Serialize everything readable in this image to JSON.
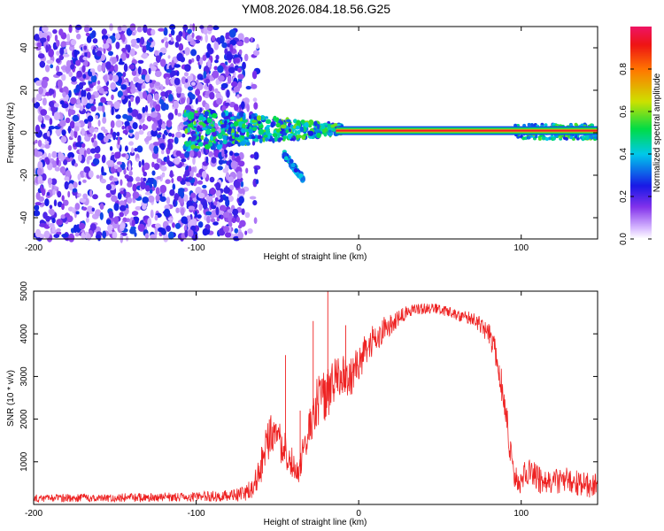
{
  "title": "YM08.2026.084.18.56.G25",
  "chart_data": [
    {
      "type": "heatmap",
      "xlabel": "Height of straight line (km)",
      "ylabel": "Frequency (Hz)",
      "xlim": [
        -200,
        147
      ],
      "ylim": [
        -50,
        50
      ],
      "xticks": [
        -200,
        -100,
        0,
        100
      ],
      "yticks": [
        -40,
        -20,
        0,
        20,
        40
      ],
      "colorbar": {
        "label": "Normalized spectral amplitude",
        "range": [
          0,
          1
        ],
        "ticks": [
          0.0,
          0.2,
          0.4,
          0.6,
          0.8
        ]
      },
      "features": {
        "carrier_line": {
          "x_from": -14,
          "x_to": 147,
          "frequency_hz": 1,
          "amplitude": 0.95
        },
        "noise_region": {
          "x_from": -200,
          "x_to": -72,
          "amplitude_range": [
            0.05,
            0.3
          ]
        },
        "mixed_region": {
          "x_from": -107,
          "x_to": -10,
          "frequency_band_hz": [
            -8,
            8
          ],
          "amplitude_range": [
            0.2,
            0.6
          ]
        },
        "branch": {
          "x_from": -46,
          "x_to": -34,
          "frequency_from_hz": -10,
          "frequency_to_hz": -22,
          "amplitude": 0.35
        },
        "right_band": {
          "x_from": 96,
          "x_to": 147,
          "frequency_band_hz": [
            -3,
            4
          ],
          "amplitude_range": [
            0.25,
            0.85
          ]
        }
      }
    },
    {
      "type": "line",
      "xlabel": "Height of straight line (km)",
      "ylabel": "SNR (10 * v/v)",
      "xlim": [
        -200,
        147
      ],
      "ylim": [
        0,
        5000
      ],
      "xticks": [
        -200,
        -100,
        0,
        100
      ],
      "yticks": [
        1000,
        2000,
        3000,
        4000,
        5000
      ],
      "series": [
        {
          "name": "SNR",
          "color": "#ee2222",
          "envelope": {
            "x": [
              -200,
              -150,
              -100,
              -75,
              -65,
              -60,
              -56,
              -52,
              -48,
              -44,
              -40,
              -37,
              -34,
              -30,
              -26,
              -22,
              -18,
              -14,
              -10,
              -6,
              -2,
              2,
              6,
              10,
              15,
              20,
              25,
              30,
              35,
              40,
              45,
              50,
              55,
              60,
              65,
              70,
              75,
              80,
              84,
              87,
              90,
              93,
              96,
              99,
              102,
              106,
              110,
              116,
              122,
              128,
              134,
              140,
              147
            ],
            "y": [
              150,
              160,
              180,
              220,
              350,
              900,
              1500,
              1700,
              1400,
              1200,
              900,
              700,
              1200,
              1800,
              2400,
              2500,
              2700,
              2900,
              3000,
              2900,
              3100,
              3400,
              3700,
              3900,
              4100,
              4200,
              4400,
              4500,
              4550,
              4600,
              4600,
              4580,
              4500,
              4450,
              4400,
              4350,
              4200,
              4000,
              3600,
              3000,
              2300,
              1400,
              700,
              400,
              700,
              900,
              600,
              500,
              550,
              600,
              500,
              450,
              500
            ],
            "noise": [
              90,
              100,
              110,
              150,
              250,
              450,
              550,
              500,
              450,
              400,
              350,
              300,
              450,
              550,
              600,
              600,
              600,
              550,
              550,
              500,
              500,
              450,
              400,
              350,
              300,
              250,
              200,
              160,
              140,
              130,
              120,
              120,
              130,
              140,
              150,
              170,
              200,
              250,
              300,
              350,
              400,
              400,
              300,
              250,
              300,
              350,
              350,
              300,
              300,
              300,
              300,
              300,
              300
            ]
          },
          "spikes": [
            {
              "x": -45,
              "y": 3500
            },
            {
              "x": -36,
              "y": 2200
            },
            {
              "x": -19,
              "y": 5050
            },
            {
              "x": -28,
              "y": 4300
            },
            {
              "x": -8,
              "y": 4200
            }
          ]
        }
      ]
    }
  ]
}
